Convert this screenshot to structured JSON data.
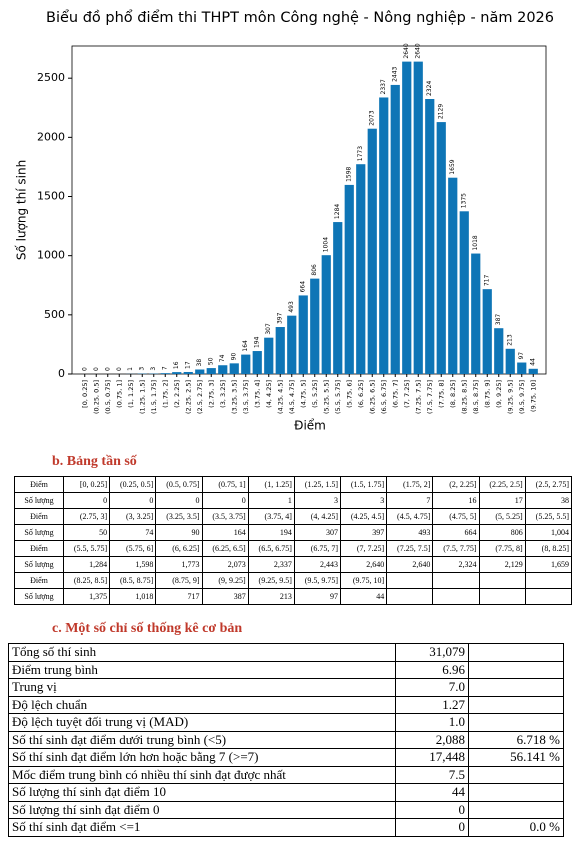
{
  "chart_data": {
    "type": "bar",
    "title": "Biểu đồ phổ điểm thi THPT môn Công nghệ - Nông nghiệp - năm 2026",
    "xlabel": "Điểm",
    "ylabel": "Số lượng thí sinh",
    "color": "#0e75b6",
    "categories": [
      "[0, 0.25]",
      "(0.25, 0.5]",
      "(0.5, 0.75]",
      "(0.75, 1]",
      "(1, 1.25]",
      "(1.25, 1.5]",
      "(1.5, 1.75]",
      "(1.75, 2]",
      "(2, 2.25]",
      "(2.25, 2.5]",
      "(2.5, 2.75]",
      "(2.75, 3]",
      "(3, 3.25]",
      "(3.25, 3.5]",
      "(3.5, 3.75]",
      "(3.75, 4]",
      "(4, 4.25]",
      "(4.25, 4.5]",
      "(4.5, 4.75]",
      "(4.75, 5]",
      "(5, 5.25]",
      "(5.25, 5.5]",
      "(5.5, 5.75]",
      "(5.75, 6]",
      "(6, 6.25]",
      "(6.25, 6.5]",
      "(6.5, 6.75]",
      "(6.75, 7]",
      "(7, 7.25]",
      "(7.25, 7.5]",
      "(7.5, 7.75]",
      "(7.75, 8]",
      "(8, 8.25]",
      "(8.25, 8.5]",
      "(8.5, 8.75]",
      "(8.75, 9]",
      "(9, 9.25]",
      "(9.25, 9.5]",
      "(9.5, 9.75]",
      "(9.75, 10]"
    ],
    "values": [
      0,
      0,
      0,
      0,
      1,
      3,
      3,
      7,
      16,
      17,
      38,
      50,
      74,
      90,
      164,
      194,
      307,
      397,
      493,
      664,
      806,
      1004,
      1284,
      1598,
      1773,
      2073,
      2337,
      2443,
      2640,
      2640,
      2324,
      2129,
      1659,
      1375,
      1018,
      717,
      387,
      213,
      97,
      44
    ],
    "ylim": [
      0,
      2772
    ],
    "yticks": [
      0,
      500,
      1000,
      1500,
      2000,
      2500
    ]
  },
  "frequency_section": {
    "title": "b.   Bảng tần số",
    "row_labels": [
      "Điểm",
      "Số lượng"
    ],
    "counts": [
      "0",
      "0",
      "0",
      "0",
      "1",
      "3",
      "3",
      "7",
      "16",
      "17",
      "38",
      "50",
      "74",
      "90",
      "164",
      "194",
      "307",
      "397",
      "493",
      "664",
      "806",
      "1,004",
      "1,284",
      "1,598",
      "1,773",
      "2,073",
      "2,337",
      "2,443",
      "2,640",
      "2,640",
      "2,324",
      "2,129",
      "1,659",
      "1,375",
      "1,018",
      "717",
      "387",
      "213",
      "97",
      "44"
    ]
  },
  "stats_section": {
    "title": "c.   Một số chỉ số thống kê cơ bản",
    "rows": [
      [
        "Tổng số thí sinh",
        "31,079",
        ""
      ],
      [
        "Điểm trung bình",
        "6.96",
        ""
      ],
      [
        "Trung vị",
        "7.0",
        ""
      ],
      [
        "Độ lệch chuẩn",
        "1.27",
        ""
      ],
      [
        "Độ lệch tuyệt đối trung vị (MAD)",
        "1.0",
        ""
      ],
      [
        "Số thí sinh đạt điểm dưới trung bình (<5)",
        "2,088",
        "6.718 %"
      ],
      [
        "Số thí sinh đạt điểm lớn hơn hoặc bằng 7 (>=7)",
        "17,448",
        "56.141 %"
      ],
      [
        "Mốc điểm trung bình có nhiều thí sinh đạt được nhất",
        "7.5",
        ""
      ],
      [
        "Số lượng thí sinh đạt điểm 10",
        "44",
        ""
      ],
      [
        "Số lượng thí sinh đạt điểm 0",
        "0",
        ""
      ],
      [
        "Số thí sinh đạt điểm <=1",
        "0",
        "0.0 %"
      ]
    ]
  }
}
